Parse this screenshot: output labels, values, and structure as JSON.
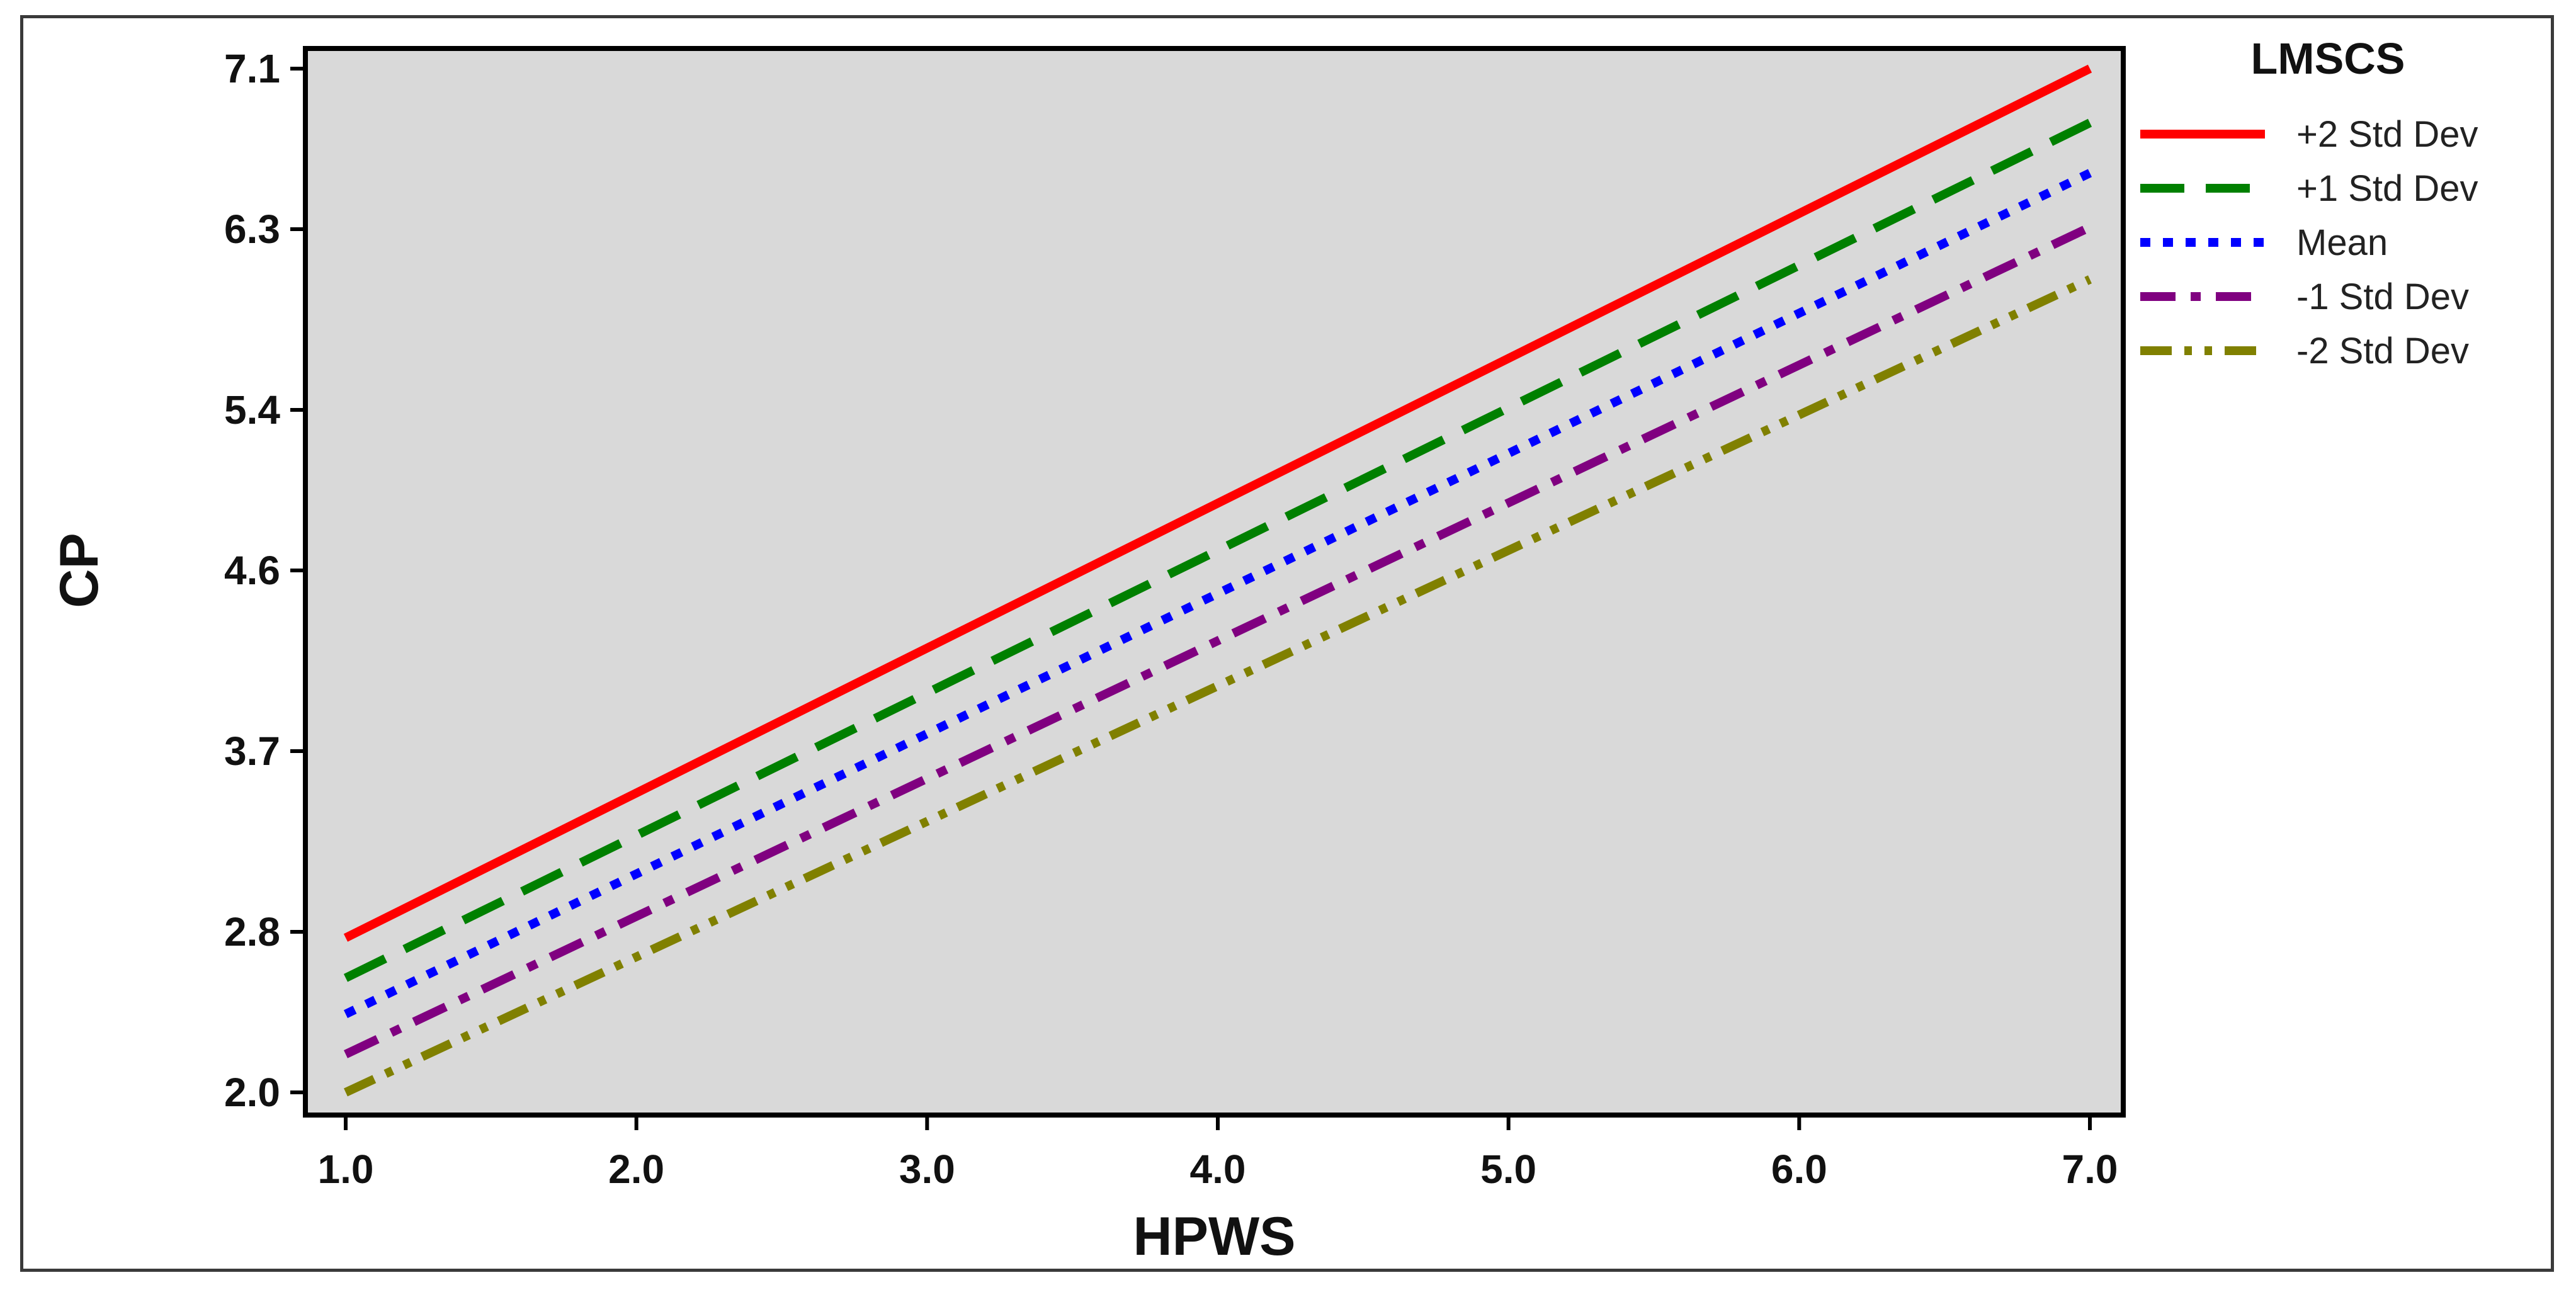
{
  "chart_data": {
    "type": "line",
    "title": "",
    "xlabel": "HPWS",
    "ylabel": "CP",
    "xlim": [
      1.0,
      7.0
    ],
    "ylim": [
      2.0,
      7.1
    ],
    "x_ticks": [
      "1.0",
      "2.0",
      "3.0",
      "4.0",
      "5.0",
      "6.0",
      "7.0"
    ],
    "y_ticks": [
      "2.0",
      "2.8",
      "3.7",
      "4.6",
      "5.4",
      "6.3",
      "7.1"
    ],
    "x": [
      1.0,
      7.0
    ],
    "grid": false,
    "plot_background": "#d9d9d9",
    "legend": {
      "title": "LMSCS",
      "position": "right"
    },
    "series": [
      {
        "name": "+2 Std Dev",
        "values": [
          2.77,
          7.1
        ],
        "color": "#ff0000",
        "style": "solid"
      },
      {
        "name": "+1 Std Dev",
        "values": [
          2.57,
          6.83
        ],
        "color": "#008000",
        "style": "dashed"
      },
      {
        "name": "Mean",
        "values": [
          2.39,
          6.58
        ],
        "color": "#0000ff",
        "style": "dotted"
      },
      {
        "name": "-1 Std Dev",
        "values": [
          2.19,
          6.31
        ],
        "color": "#800080",
        "style": "dashdot"
      },
      {
        "name": "-2 Std Dev",
        "values": [
          2.0,
          6.05
        ],
        "color": "#808000",
        "style": "dashdotdot"
      }
    ]
  }
}
